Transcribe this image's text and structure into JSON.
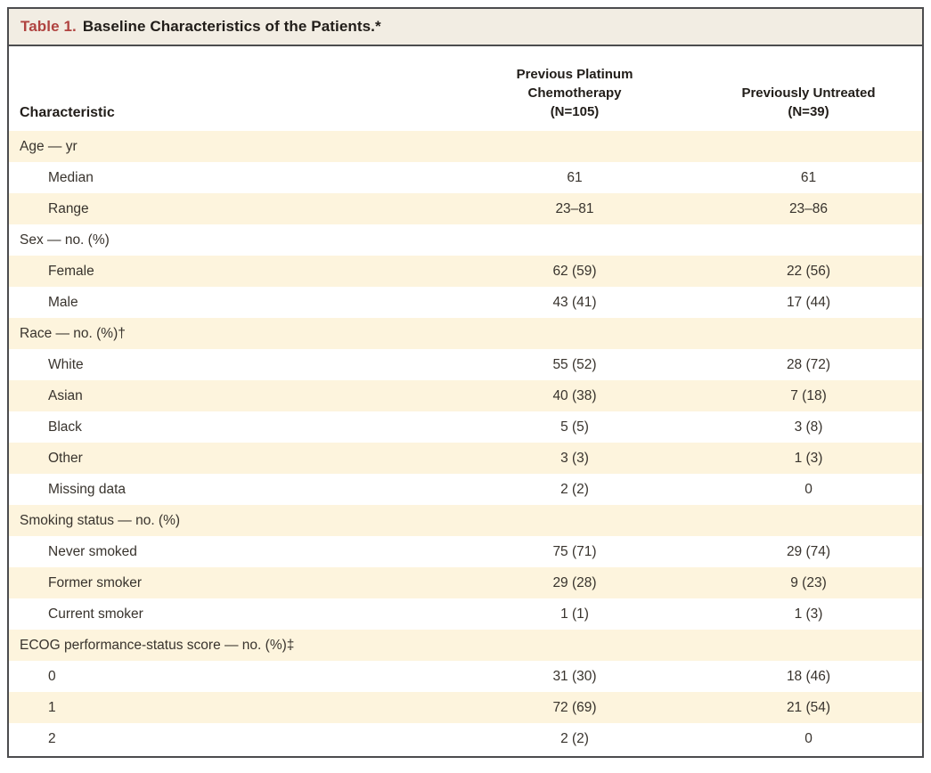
{
  "colors": {
    "title-red": "#b04340",
    "titlebar-bg": "#f2ede3",
    "row-shade": "#fdf4dd",
    "border": "#4c4c4e",
    "text": "#2f2b26"
  },
  "table": {
    "title_label": "Table 1.",
    "title_text": "Baseline Characteristics of the Patients.*",
    "columns": {
      "characteristic": "Characteristic",
      "col1": [
        "Previous Platinum",
        "Chemotherapy",
        "(N=105)"
      ],
      "col2": [
        "Previously Untreated",
        "(N=39)"
      ]
    },
    "rows": [
      {
        "label": "Age — yr",
        "level": "section",
        "col1": "",
        "col2": ""
      },
      {
        "label": "Median",
        "level": "sub",
        "col1": "61",
        "col2": "61"
      },
      {
        "label": "Range",
        "level": "sub",
        "col1": "23–81",
        "col2": "23–86"
      },
      {
        "label": "Sex — no. (%)",
        "level": "section",
        "col1": "",
        "col2": ""
      },
      {
        "label": "Female",
        "level": "sub",
        "col1": "62 (59)",
        "col2": "22 (56)"
      },
      {
        "label": "Male",
        "level": "sub",
        "col1": "43 (41)",
        "col2": "17 (44)"
      },
      {
        "label": "Race — no. (%)†",
        "level": "section",
        "col1": "",
        "col2": ""
      },
      {
        "label": "White",
        "level": "sub",
        "col1": "55 (52)",
        "col2": "28 (72)"
      },
      {
        "label": "Asian",
        "level": "sub",
        "col1": "40 (38)",
        "col2": "7 (18)"
      },
      {
        "label": "Black",
        "level": "sub",
        "col1": "5 (5)",
        "col2": "3 (8)"
      },
      {
        "label": "Other",
        "level": "sub",
        "col1": "3 (3)",
        "col2": "1 (3)"
      },
      {
        "label": "Missing data",
        "level": "sub",
        "col1": "2 (2)",
        "col2": "0"
      },
      {
        "label": "Smoking status — no. (%)",
        "level": "section",
        "col1": "",
        "col2": ""
      },
      {
        "label": "Never smoked",
        "level": "sub",
        "col1": "75 (71)",
        "col2": "29 (74)"
      },
      {
        "label": "Former smoker",
        "level": "sub",
        "col1": "29 (28)",
        "col2": "9 (23)"
      },
      {
        "label": "Current smoker",
        "level": "sub",
        "col1": "1 (1)",
        "col2": "1 (3)"
      },
      {
        "label": "ECOG performance-status score — no. (%)‡",
        "level": "section",
        "col1": "",
        "col2": ""
      },
      {
        "label": "0",
        "level": "sub",
        "col1": "31 (30)",
        "col2": "18 (46)"
      },
      {
        "label": "1",
        "level": "sub",
        "col1": "72 (69)",
        "col2": "21 (54)"
      },
      {
        "label": "2",
        "level": "sub",
        "col1": "2 (2)",
        "col2": "0"
      }
    ]
  }
}
